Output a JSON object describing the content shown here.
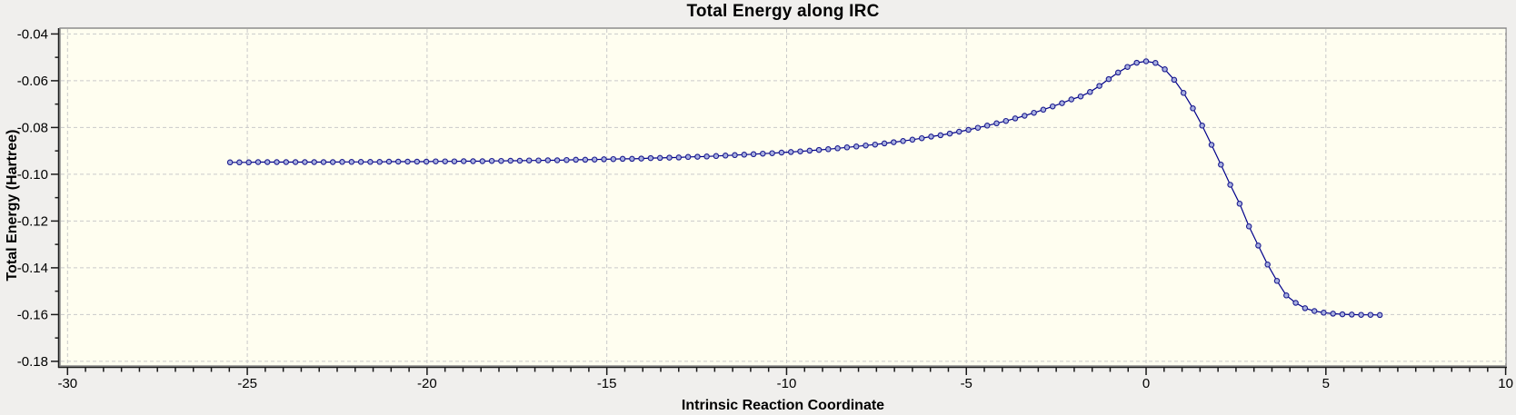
{
  "page": {
    "outer_background": "#f0efed"
  },
  "chart_data": {
    "type": "line",
    "title": "Total Energy along IRC",
    "xlabel": "Intrinsic Reaction Coordinate",
    "ylabel": "Total Energy (Hartree)",
    "xlim": [
      -30,
      10
    ],
    "ylim": [
      -0.18,
      -0.04
    ],
    "x_major_ticks": [
      -30,
      -25,
      -20,
      -15,
      -10,
      -5,
      0,
      5,
      10
    ],
    "x_tick_labels": [
      "-30",
      "-25",
      "-20",
      "-15",
      "-10",
      "-5",
      "0",
      "5",
      "10"
    ],
    "x_minor_step": 0.5,
    "y_major_ticks": [
      -0.04,
      -0.06,
      -0.08,
      -0.1,
      -0.12,
      -0.14,
      -0.16,
      -0.18
    ],
    "y_tick_labels": [
      "-0.04",
      "-0.06",
      "-0.08",
      "-0.10",
      "-0.12",
      "-0.14",
      "-0.16",
      "-0.18"
    ],
    "y_minor_step": 0.01,
    "grid": "major-dashed",
    "legend": "none",
    "colors": {
      "plot_background": "#fffef0",
      "grid_color": "#c9c9c9",
      "frame_color": "#8c8c8c",
      "axis_color": "#1a1a1a",
      "line_color": "#00008b",
      "marker_fill": "#a8b0e0",
      "marker_edge": "#1c1c8f",
      "text_color": "#000000"
    },
    "series": [
      {
        "name": "Total Energy",
        "marker": "circle",
        "points": [
          [
            -25.48,
            -0.0949
          ],
          [
            -25.22,
            -0.0949
          ],
          [
            -24.96,
            -0.0949
          ],
          [
            -24.7,
            -0.0948
          ],
          [
            -24.44,
            -0.0948
          ],
          [
            -24.18,
            -0.0948
          ],
          [
            -23.92,
            -0.0948
          ],
          [
            -23.66,
            -0.0948
          ],
          [
            -23.4,
            -0.0948
          ],
          [
            -23.14,
            -0.0948
          ],
          [
            -22.88,
            -0.0948
          ],
          [
            -22.62,
            -0.0948
          ],
          [
            -22.36,
            -0.0947
          ],
          [
            -22.1,
            -0.0947
          ],
          [
            -21.84,
            -0.0947
          ],
          [
            -21.58,
            -0.0947
          ],
          [
            -21.32,
            -0.0947
          ],
          [
            -21.06,
            -0.0946
          ],
          [
            -20.8,
            -0.0946
          ],
          [
            -20.54,
            -0.0946
          ],
          [
            -20.28,
            -0.0946
          ],
          [
            -20.02,
            -0.0946
          ],
          [
            -19.76,
            -0.0945
          ],
          [
            -19.5,
            -0.0945
          ],
          [
            -19.24,
            -0.0945
          ],
          [
            -18.98,
            -0.0944
          ],
          [
            -18.72,
            -0.0944
          ],
          [
            -18.46,
            -0.0944
          ],
          [
            -18.2,
            -0.0943
          ],
          [
            -17.94,
            -0.0943
          ],
          [
            -17.68,
            -0.0942
          ],
          [
            -17.42,
            -0.0942
          ],
          [
            -17.16,
            -0.0941
          ],
          [
            -16.9,
            -0.0941
          ],
          [
            -16.64,
            -0.094
          ],
          [
            -16.38,
            -0.094
          ],
          [
            -16.12,
            -0.0939
          ],
          [
            -15.86,
            -0.0938
          ],
          [
            -15.6,
            -0.0938
          ],
          [
            -15.34,
            -0.0937
          ],
          [
            -15.08,
            -0.0936
          ],
          [
            -14.82,
            -0.0935
          ],
          [
            -14.56,
            -0.0934
          ],
          [
            -14.3,
            -0.0934
          ],
          [
            -14.04,
            -0.0933
          ],
          [
            -13.78,
            -0.0931
          ],
          [
            -13.52,
            -0.093
          ],
          [
            -13.26,
            -0.0929
          ],
          [
            -13.0,
            -0.0928
          ],
          [
            -12.74,
            -0.0926
          ],
          [
            -12.48,
            -0.0925
          ],
          [
            -12.22,
            -0.0924
          ],
          [
            -11.96,
            -0.0922
          ],
          [
            -11.7,
            -0.092
          ],
          [
            -11.44,
            -0.0918
          ],
          [
            -11.18,
            -0.0916
          ],
          [
            -10.92,
            -0.0914
          ],
          [
            -10.66,
            -0.0912
          ],
          [
            -10.4,
            -0.091
          ],
          [
            -10.14,
            -0.0907
          ],
          [
            -9.88,
            -0.0905
          ],
          [
            -9.62,
            -0.0902
          ],
          [
            -9.36,
            -0.0899
          ],
          [
            -9.1,
            -0.0896
          ],
          [
            -8.84,
            -0.0893
          ],
          [
            -8.58,
            -0.0889
          ],
          [
            -8.32,
            -0.0885
          ],
          [
            -8.06,
            -0.0881
          ],
          [
            -7.8,
            -0.0877
          ],
          [
            -7.54,
            -0.0873
          ],
          [
            -7.28,
            -0.0868
          ],
          [
            -7.02,
            -0.0863
          ],
          [
            -6.76,
            -0.0858
          ],
          [
            -6.5,
            -0.0852
          ],
          [
            -6.24,
            -0.0846
          ],
          [
            -5.98,
            -0.0839
          ],
          [
            -5.72,
            -0.0833
          ],
          [
            -5.46,
            -0.0826
          ],
          [
            -5.2,
            -0.0818
          ],
          [
            -4.94,
            -0.081
          ],
          [
            -4.68,
            -0.0801
          ],
          [
            -4.42,
            -0.0792
          ],
          [
            -4.16,
            -0.0782
          ],
          [
            -3.9,
            -0.0772
          ],
          [
            -3.64,
            -0.0761
          ],
          [
            -3.38,
            -0.075
          ],
          [
            -3.12,
            -0.0737
          ],
          [
            -2.86,
            -0.0724
          ],
          [
            -2.6,
            -0.071
          ],
          [
            -2.34,
            -0.0696
          ],
          [
            -2.08,
            -0.068
          ],
          [
            -1.82,
            -0.0667
          ],
          [
            -1.56,
            -0.0648
          ],
          [
            -1.3,
            -0.0622
          ],
          [
            -1.04,
            -0.0593
          ],
          [
            -0.78,
            -0.0565
          ],
          [
            -0.52,
            -0.0541
          ],
          [
            -0.26,
            -0.0523
          ],
          [
            0.0,
            -0.0517
          ],
          [
            0.26,
            -0.0524
          ],
          [
            0.52,
            -0.0551
          ],
          [
            0.78,
            -0.0596
          ],
          [
            1.04,
            -0.0652
          ],
          [
            1.3,
            -0.0718
          ],
          [
            1.56,
            -0.0792
          ],
          [
            1.82,
            -0.0874
          ],
          [
            2.08,
            -0.0959
          ],
          [
            2.34,
            -0.1045
          ],
          [
            2.6,
            -0.1126
          ],
          [
            2.86,
            -0.1223
          ],
          [
            3.12,
            -0.1305
          ],
          [
            3.38,
            -0.1386
          ],
          [
            3.64,
            -0.1456
          ],
          [
            3.9,
            -0.1518
          ],
          [
            4.16,
            -0.155
          ],
          [
            4.42,
            -0.1573
          ],
          [
            4.68,
            -0.1585
          ],
          [
            4.94,
            -0.1592
          ],
          [
            5.2,
            -0.1596
          ],
          [
            5.46,
            -0.1599
          ],
          [
            5.72,
            -0.16
          ],
          [
            5.98,
            -0.1601
          ],
          [
            6.24,
            -0.1601
          ],
          [
            6.5,
            -0.1602
          ]
        ]
      }
    ]
  }
}
